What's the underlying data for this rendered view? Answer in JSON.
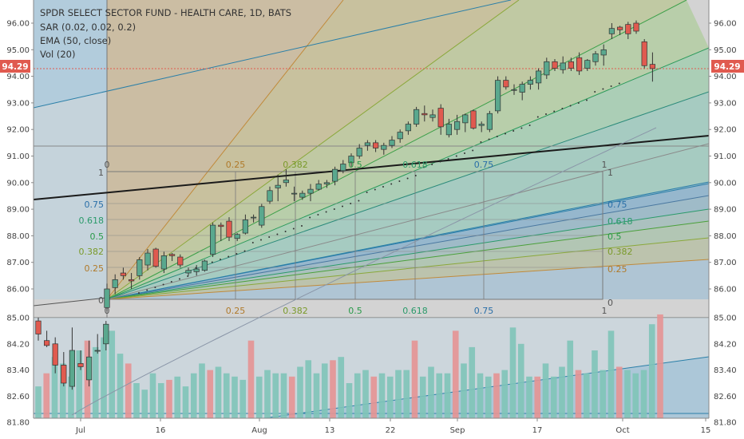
{
  "header": {
    "title": "SPDR SELECT SECTOR FUND - HEALTH CARE, 1D, BATS",
    "studies": [
      "SAR (0.02, 0.02, 0.2)",
      "EMA (50, close)",
      "Vol (20)"
    ]
  },
  "price_badge": "94.29",
  "colors": {
    "up": "#5aa88e",
    "down": "#e05a4f",
    "vol_up": "#7fc4b8",
    "vol_down": "#e59494",
    "ema": "#8a96a8",
    "trend": "#1a1a1a",
    "fan_teal": "#2a7fa8",
    "badge": "#e05a4f"
  },
  "fib_levels": [
    "0",
    "0.25",
    "0.382",
    "0.5",
    "0.618",
    "0.75",
    "1"
  ],
  "chart_data": {
    "type": "candlestick",
    "price_axis_ticks": [
      "96.00",
      "95.00",
      "94.00",
      "93.00",
      "92.00",
      "91.00",
      "90.00",
      "89.00",
      "88.00",
      "87.00",
      "86.00"
    ],
    "volume_axis_ticks": [
      "85.00",
      "84.20",
      "83.40",
      "82.60",
      "81.80"
    ],
    "x_tick_labels": [
      "Jul",
      "16",
      "Aug",
      "13",
      "22",
      "Sep",
      "17",
      "Oct",
      "15"
    ],
    "last_price": 94.29,
    "main_candles": [
      {
        "o": 85.3,
        "h": 86.2,
        "l": 85.15,
        "c": 86.0
      },
      {
        "o": 86.05,
        "h": 86.55,
        "l": 85.8,
        "c": 86.35
      },
      {
        "o": 86.6,
        "h": 86.8,
        "l": 86.35,
        "c": 86.5
      },
      {
        "o": 86.35,
        "h": 86.6,
        "l": 86.0,
        "c": 86.3
      },
      {
        "o": 86.5,
        "h": 87.2,
        "l": 86.35,
        "c": 87.1
      },
      {
        "o": 86.9,
        "h": 87.5,
        "l": 86.7,
        "c": 87.35
      },
      {
        "o": 87.5,
        "h": 87.55,
        "l": 86.8,
        "c": 86.85
      },
      {
        "o": 86.75,
        "h": 87.4,
        "l": 86.6,
        "c": 87.25
      },
      {
        "o": 87.3,
        "h": 87.35,
        "l": 87.05,
        "c": 87.25
      },
      {
        "o": 87.2,
        "h": 87.3,
        "l": 86.8,
        "c": 86.9
      },
      {
        "o": 86.6,
        "h": 86.8,
        "l": 86.5,
        "c": 86.7
      },
      {
        "o": 86.65,
        "h": 86.9,
        "l": 86.5,
        "c": 86.75
      },
      {
        "o": 86.7,
        "h": 87.1,
        "l": 86.65,
        "c": 87.05
      },
      {
        "o": 87.3,
        "h": 88.5,
        "l": 87.2,
        "c": 88.4
      },
      {
        "o": 88.4,
        "h": 88.5,
        "l": 87.8,
        "c": 88.35
      },
      {
        "o": 88.55,
        "h": 88.7,
        "l": 87.8,
        "c": 87.95
      },
      {
        "o": 87.9,
        "h": 88.1,
        "l": 87.8,
        "c": 88.05
      },
      {
        "o": 88.1,
        "h": 88.8,
        "l": 88.05,
        "c": 88.6
      },
      {
        "o": 88.7,
        "h": 88.8,
        "l": 88.5,
        "c": 88.7
      },
      {
        "o": 88.4,
        "h": 89.2,
        "l": 88.3,
        "c": 89.1
      },
      {
        "o": 89.3,
        "h": 89.85,
        "l": 89.2,
        "c": 89.7
      },
      {
        "o": 89.8,
        "h": 90.3,
        "l": 89.3,
        "c": 89.9
      },
      {
        "o": 90.0,
        "h": 90.5,
        "l": 89.85,
        "c": 90.1
      },
      {
        "o": 89.6,
        "h": 89.85,
        "l": 89.3,
        "c": 89.6
      },
      {
        "o": 89.45,
        "h": 89.7,
        "l": 89.35,
        "c": 89.6
      },
      {
        "o": 89.6,
        "h": 89.95,
        "l": 89.3,
        "c": 89.75
      },
      {
        "o": 89.75,
        "h": 90.1,
        "l": 89.7,
        "c": 89.95
      },
      {
        "o": 89.95,
        "h": 90.1,
        "l": 89.8,
        "c": 90.0
      },
      {
        "o": 90.05,
        "h": 90.6,
        "l": 89.9,
        "c": 90.5
      },
      {
        "o": 90.45,
        "h": 90.85,
        "l": 90.35,
        "c": 90.7
      },
      {
        "o": 90.75,
        "h": 91.1,
        "l": 90.6,
        "c": 91.0
      },
      {
        "o": 91.0,
        "h": 91.45,
        "l": 90.9,
        "c": 91.3
      },
      {
        "o": 91.4,
        "h": 91.6,
        "l": 91.2,
        "c": 91.5
      },
      {
        "o": 91.5,
        "h": 91.6,
        "l": 91.15,
        "c": 91.3
      },
      {
        "o": 91.25,
        "h": 91.5,
        "l": 91.05,
        "c": 91.4
      },
      {
        "o": 91.4,
        "h": 91.75,
        "l": 91.3,
        "c": 91.6
      },
      {
        "o": 91.65,
        "h": 92.0,
        "l": 91.5,
        "c": 91.9
      },
      {
        "o": 91.95,
        "h": 92.3,
        "l": 91.8,
        "c": 92.2
      },
      {
        "o": 92.2,
        "h": 92.85,
        "l": 92.1,
        "c": 92.75
      },
      {
        "o": 92.6,
        "h": 92.9,
        "l": 92.3,
        "c": 92.55
      },
      {
        "o": 92.45,
        "h": 92.75,
        "l": 92.3,
        "c": 92.55
      },
      {
        "o": 92.8,
        "h": 92.95,
        "l": 91.8,
        "c": 92.1
      },
      {
        "o": 91.8,
        "h": 92.4,
        "l": 91.7,
        "c": 92.2
      },
      {
        "o": 92.0,
        "h": 92.55,
        "l": 91.8,
        "c": 92.3
      },
      {
        "o": 92.25,
        "h": 92.6,
        "l": 91.9,
        "c": 92.55
      },
      {
        "o": 92.7,
        "h": 92.75,
        "l": 92.0,
        "c": 92.05
      },
      {
        "o": 92.15,
        "h": 92.3,
        "l": 91.9,
        "c": 92.2
      },
      {
        "o": 92.0,
        "h": 92.7,
        "l": 91.9,
        "c": 92.6
      },
      {
        "o": 92.7,
        "h": 94.0,
        "l": 92.6,
        "c": 93.85
      },
      {
        "o": 93.85,
        "h": 94.0,
        "l": 93.5,
        "c": 93.6
      },
      {
        "o": 93.5,
        "h": 93.7,
        "l": 93.3,
        "c": 93.5
      },
      {
        "o": 93.4,
        "h": 93.8,
        "l": 93.1,
        "c": 93.7
      },
      {
        "o": 93.7,
        "h": 94.0,
        "l": 93.5,
        "c": 93.85
      },
      {
        "o": 93.75,
        "h": 94.3,
        "l": 93.5,
        "c": 94.2
      },
      {
        "o": 94.05,
        "h": 94.7,
        "l": 93.9,
        "c": 94.55
      },
      {
        "o": 94.55,
        "h": 94.65,
        "l": 94.2,
        "c": 94.3
      },
      {
        "o": 94.25,
        "h": 94.75,
        "l": 94.1,
        "c": 94.5
      },
      {
        "o": 94.55,
        "h": 94.7,
        "l": 94.2,
        "c": 94.3
      },
      {
        "o": 94.7,
        "h": 94.9,
        "l": 94.05,
        "c": 94.2
      },
      {
        "o": 94.3,
        "h": 94.65,
        "l": 94.2,
        "c": 94.6
      },
      {
        "o": 94.55,
        "h": 94.95,
        "l": 94.4,
        "c": 94.85
      },
      {
        "o": 94.8,
        "h": 95.2,
        "l": 94.4,
        "c": 95.0
      },
      {
        "o": 95.6,
        "h": 96.0,
        "l": 95.4,
        "c": 95.8
      },
      {
        "o": 95.85,
        "h": 95.9,
        "l": 95.55,
        "c": 95.75
      },
      {
        "o": 95.95,
        "h": 96.05,
        "l": 95.4,
        "c": 95.6
      },
      {
        "o": 96.0,
        "h": 96.1,
        "l": 95.6,
        "c": 95.7
      },
      {
        "o": 95.3,
        "h": 95.4,
        "l": 94.3,
        "c": 94.4
      },
      {
        "o": 94.45,
        "h": 94.9,
        "l": 93.8,
        "c": 94.29
      }
    ],
    "pre_candles": [
      {
        "o": 84.9,
        "h": 85.0,
        "l": 84.3,
        "c": 84.5
      },
      {
        "o": 84.3,
        "h": 84.6,
        "l": 84.1,
        "c": 84.15
      },
      {
        "o": 84.2,
        "h": 84.4,
        "l": 83.3,
        "c": 83.55
      },
      {
        "o": 83.55,
        "h": 83.95,
        "l": 82.9,
        "c": 83.0
      },
      {
        "o": 82.9,
        "h": 84.7,
        "l": 82.8,
        "c": 84.0
      },
      {
        "o": 83.6,
        "h": 84.0,
        "l": 83.4,
        "c": 83.5
      },
      {
        "o": 83.1,
        "h": 84.3,
        "l": 82.9,
        "c": 83.8
      },
      {
        "o": 84.0,
        "h": 84.5,
        "l": 83.9,
        "c": 84.0
      },
      {
        "o": 84.2,
        "h": 84.9,
        "l": 84.0,
        "c": 84.8
      }
    ],
    "volume_values": [
      82.9,
      83.3,
      83.8,
      83.6,
      83.2,
      84.0,
      84.3,
      84.1,
      84.4,
      84.6,
      83.9,
      83.6,
      83.0,
      82.8,
      83.3,
      83.0,
      83.1,
      83.2,
      82.9,
      83.3,
      83.6,
      83.4,
      83.5,
      83.3,
      83.2,
      83.1,
      84.3,
      83.2,
      83.4,
      83.3,
      83.3,
      83.2,
      83.5,
      83.7,
      83.3,
      83.6,
      83.7,
      83.8,
      83.0,
      83.3,
      83.4,
      83.2,
      83.3,
      83.2,
      83.4,
      83.4,
      84.3,
      83.2,
      83.5,
      83.3,
      83.3,
      84.6,
      83.6,
      84.1,
      83.3,
      83.2,
      83.3,
      83.4,
      84.7,
      84.2,
      83.2,
      83.2,
      83.6,
      83.2,
      83.5,
      84.3,
      83.4,
      83.3,
      84.0,
      83.4,
      84.6,
      83.5,
      83.4,
      83.3,
      83.4,
      84.8,
      85.1
    ]
  }
}
